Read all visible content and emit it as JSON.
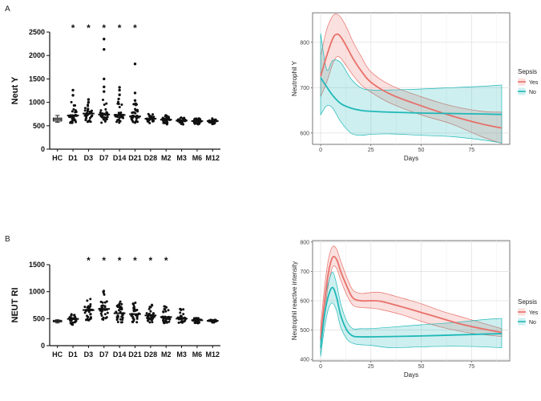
{
  "panel_labels": [
    "A",
    "B"
  ],
  "chart_data": [
    {
      "type": "scatter",
      "panel": "A",
      "title": "",
      "ylabel": "Neut Y",
      "xlabel": "",
      "ylim": [
        0,
        2500
      ],
      "yticks": [
        0,
        500,
        1000,
        1500,
        2000,
        2500
      ],
      "categories": [
        "HC",
        "D1",
        "D3",
        "D7",
        "D14",
        "D21",
        "D28",
        "M2",
        "M3",
        "M6",
        "M12"
      ],
      "boxplot_category": "HC",
      "box": {
        "q1": 600,
        "median": 635,
        "q3": 665,
        "whisker_low": 575,
        "whisker_high": 720
      },
      "medians": [
        635,
        720,
        760,
        740,
        730,
        700,
        650,
        630,
        610,
        600,
        600
      ],
      "spread": [
        null,
        [
          560,
          1060
        ],
        [
          580,
          1040
        ],
        [
          560,
          1120
        ],
        [
          560,
          1100
        ],
        [
          560,
          980
        ],
        [
          540,
          760
        ],
        [
          530,
          730
        ],
        [
          520,
          680
        ],
        [
          530,
          660
        ],
        [
          530,
          660
        ]
      ],
      "outliers": [
        {
          "category": "D1",
          "values": [
            1260,
            1150
          ]
        },
        {
          "category": "D3",
          "values": [
            1000,
            1060
          ]
        },
        {
          "category": "D7",
          "values": [
            2350,
            2130,
            1500,
            1330,
            1230
          ]
        },
        {
          "category": "D14",
          "values": [
            1320,
            1260,
            1160
          ]
        },
        {
          "category": "D21",
          "values": [
            1820,
            1200,
            1040
          ]
        }
      ],
      "significant": [
        "D1",
        "D3",
        "D7",
        "D14",
        "D21"
      ],
      "significance_marker": "*"
    },
    {
      "type": "line",
      "panel": "A",
      "title": "",
      "ylabel": "Neutrophil Y",
      "xlabel": "Days",
      "xlim": [
        -4,
        94
      ],
      "ylim": [
        575,
        865
      ],
      "xticks": [
        0,
        25,
        50,
        75
      ],
      "yticks": [
        600,
        700,
        800
      ],
      "grid": true,
      "legend_title": "Sepsis",
      "legend_position": "right",
      "series": [
        {
          "name": "Yes",
          "color": "#e8706a",
          "x": [
            0,
            3,
            6,
            8,
            10,
            13,
            16,
            20,
            25,
            35,
            50,
            65,
            80,
            90
          ],
          "y": [
            725,
            770,
            808,
            818,
            812,
            790,
            765,
            738,
            712,
            685,
            660,
            638,
            620,
            611
          ],
          "lower": [
            680,
            712,
            752,
            768,
            765,
            747,
            728,
            707,
            690,
            665,
            640,
            620,
            592,
            577
          ],
          "upper": [
            770,
            828,
            858,
            862,
            855,
            832,
            802,
            770,
            735,
            705,
            680,
            660,
            648,
            646
          ]
        },
        {
          "name": "No",
          "color": "#1fb8b8",
          "x": [
            0,
            3,
            6,
            10,
            15,
            20,
            25,
            35,
            50,
            65,
            80,
            90
          ],
          "y": [
            722,
            702,
            683,
            665,
            655,
            650,
            648,
            646,
            644,
            643,
            642,
            641
          ],
          "lower": [
            640,
            660,
            655,
            625,
            600,
            595,
            597,
            598,
            595,
            592,
            585,
            578
          ],
          "upper": [
            820,
            740,
            760,
            755,
            720,
            700,
            695,
            695,
            697,
            700,
            703,
            706
          ]
        }
      ]
    },
    {
      "type": "scatter",
      "panel": "B",
      "title": "",
      "ylabel": "NEUT RI",
      "xlabel": "",
      "ylim": [
        0,
        1500
      ],
      "yticks": [
        0,
        500,
        1000,
        1500
      ],
      "categories": [
        "HC",
        "D1",
        "D3",
        "D7",
        "D14",
        "D21",
        "D28",
        "M2",
        "M3",
        "M6",
        "M12"
      ],
      "boxplot_category": "HC",
      "box": {
        "q1": 440,
        "median": 455,
        "q3": 470,
        "whisker_low": 420,
        "whisker_high": 480
      },
      "medians": [
        455,
        495,
        660,
        680,
        600,
        585,
        560,
        530,
        500,
        470,
        460
      ],
      "spread": [
        null,
        [
          380,
          600
        ],
        [
          470,
          900
        ],
        [
          470,
          1020
        ],
        [
          430,
          870
        ],
        [
          430,
          800
        ],
        [
          420,
          780
        ],
        [
          410,
          760
        ],
        [
          420,
          720
        ],
        [
          410,
          520
        ],
        [
          430,
          480
        ]
      ],
      "outliers": [],
      "significant": [
        "D3",
        "D7",
        "D14",
        "D21",
        "D28",
        "M2"
      ],
      "significance_marker": "*"
    },
    {
      "type": "line",
      "panel": "B",
      "title": "",
      "ylabel": "Neutrophil reactive intensity",
      "xlabel": "Days",
      "xlim": [
        -4,
        94
      ],
      "ylim": [
        395,
        805
      ],
      "xticks": [
        0,
        25,
        50,
        75
      ],
      "yticks": [
        400,
        500,
        600,
        700,
        800
      ],
      "grid": true,
      "legend_title": "Sepsis",
      "legend_position": "right",
      "series": [
        {
          "name": "Yes",
          "color": "#e8706a",
          "x": [
            0,
            2,
            4,
            6,
            8,
            10,
            13,
            16,
            20,
            25,
            30,
            40,
            50,
            60,
            70,
            80,
            90
          ],
          "y": [
            470,
            600,
            700,
            748,
            740,
            700,
            650,
            610,
            600,
            600,
            598,
            580,
            560,
            540,
            520,
            505,
            492
          ],
          "lower": [
            430,
            560,
            660,
            715,
            710,
            670,
            620,
            585,
            577,
            575,
            570,
            553,
            530,
            510,
            495,
            485,
            478
          ],
          "upper": [
            510,
            650,
            745,
            785,
            775,
            735,
            680,
            637,
            625,
            628,
            628,
            610,
            590,
            565,
            545,
            525,
            505
          ]
        },
        {
          "name": "No",
          "color": "#1fb8b8",
          "x": [
            0,
            2,
            4,
            6,
            8,
            10,
            13,
            16,
            20,
            25,
            35,
            50,
            65,
            80,
            90
          ],
          "y": [
            440,
            555,
            620,
            645,
            610,
            550,
            500,
            480,
            477,
            477,
            478,
            480,
            483,
            486,
            488
          ],
          "lower": [
            410,
            510,
            575,
            592,
            565,
            510,
            470,
            455,
            450,
            448,
            440,
            443,
            445,
            443,
            440
          ],
          "upper": [
            470,
            600,
            665,
            698,
            655,
            590,
            530,
            505,
            505,
            505,
            510,
            518,
            525,
            535,
            540
          ]
        }
      ]
    }
  ]
}
